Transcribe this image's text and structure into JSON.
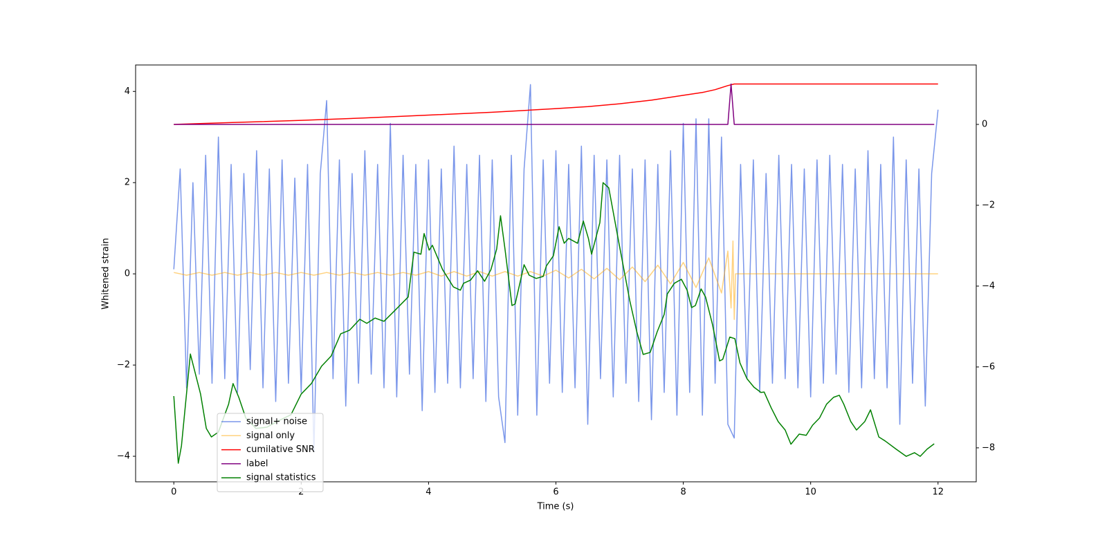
{
  "chart_data": {
    "type": "line",
    "xlabel": "Time (s)",
    "ylabel": "Whitened strain",
    "xlim": [
      -0.6,
      12.6
    ],
    "xticks": [
      0,
      2,
      4,
      6,
      8,
      10,
      12
    ],
    "ylim": [
      -4.56,
      4.58
    ],
    "yticks": [
      {
        "value": -4,
        "label": "−4"
      },
      {
        "value": -2,
        "label": "−2"
      },
      0,
      2,
      4
    ],
    "y2lim": [
      -8.84,
      1.47
    ],
    "y2ticks": [
      {
        "value": -8,
        "label": "−8"
      },
      {
        "value": -6,
        "label": "−6"
      },
      {
        "value": -4,
        "label": "−4"
      },
      {
        "value": -2,
        "label": "−2"
      },
      0
    ],
    "legend": "lower left",
    "series": [
      {
        "name": "signal+ noise",
        "color": "#4169e1",
        "alpha": 0.7,
        "x": [
          0,
          0.1,
          0.2,
          0.3,
          0.4,
          0.5,
          0.6,
          0.7,
          0.8,
          0.9,
          1,
          1.1,
          1.2,
          1.3,
          1.4,
          1.5,
          1.6,
          1.7,
          1.8,
          1.9,
          2,
          2.1,
          2.2,
          2.3,
          2.4,
          2.5,
          2.6,
          2.7,
          2.8,
          2.9,
          3,
          3.1,
          3.2,
          3.3,
          3.4,
          3.5,
          3.6,
          3.7,
          3.8,
          3.9,
          4,
          4.1,
          4.2,
          4.3,
          4.4,
          4.5,
          4.6,
          4.7,
          4.8,
          4.9,
          5,
          5.1,
          5.2,
          5.3,
          5.4,
          5.5,
          5.6,
          5.7,
          5.8,
          5.9,
          6,
          6.1,
          6.2,
          6.3,
          6.4,
          6.5,
          6.6,
          6.7,
          6.8,
          6.9,
          7,
          7.1,
          7.2,
          7.3,
          7.4,
          7.5,
          7.6,
          7.7,
          7.8,
          7.9,
          8,
          8.1,
          8.2,
          8.3,
          8.4,
          8.5,
          8.6,
          8.7,
          8.8,
          8.9,
          9,
          9.1,
          9.2,
          9.3,
          9.4,
          9.5,
          9.6,
          9.7,
          9.8,
          9.9,
          10,
          10.1,
          10.2,
          10.3,
          10.4,
          10.5,
          10.6,
          10.7,
          10.8,
          10.9,
          11,
          11.1,
          11.2,
          11.3,
          11.4,
          11.5,
          11.6,
          11.7,
          11.8,
          11.9,
          12
        ],
        "values": [
          0.1,
          2.3,
          -2.5,
          2.0,
          -2.2,
          2.6,
          -2.4,
          3.0,
          -2.3,
          2.4,
          -2.6,
          2.2,
          -2.1,
          2.7,
          -2.5,
          2.3,
          -2.8,
          2.5,
          -2.4,
          2.1,
          -2.6,
          2.4,
          -3.9,
          2.2,
          3.8,
          -2.3,
          2.5,
          -2.9,
          2.2,
          -2.4,
          2.7,
          -2.2,
          2.4,
          -2.5,
          3.3,
          -2.7,
          2.6,
          -2.2,
          2.4,
          -3.0,
          2.5,
          -2.6,
          2.3,
          -2.4,
          2.8,
          -2.5,
          2.4,
          -2.3,
          2.6,
          -2.8,
          2.5,
          -2.7,
          -3.7,
          2.6,
          -3.1,
          2.3,
          4.15,
          -3.1,
          2.5,
          -2.4,
          2.7,
          -2.6,
          2.4,
          -2.5,
          2.8,
          -3.3,
          2.6,
          -2.3,
          2.5,
          -2.7,
          2.6,
          -2.4,
          2.3,
          -2.8,
          2.5,
          -3.2,
          2.4,
          -2.6,
          2.7,
          -3.1,
          3.3,
          -2.6,
          3.4,
          -3.1,
          3.4,
          -2.4,
          3.0,
          -3.3,
          -3.6,
          2.4,
          -2.3,
          2.5,
          -2.6,
          2.2,
          -2.4,
          2.6,
          -2.3,
          2.4,
          -2.5,
          2.3,
          -2.7,
          2.5,
          -2.4,
          2.6,
          -2.2,
          2.4,
          -2.6,
          2.3,
          -2.5,
          2.7,
          -2.3,
          2.4,
          -2.5,
          3.0,
          -3.3,
          2.5,
          -2.4,
          2.3,
          -2.9,
          2.2,
          3.6
        ]
      },
      {
        "name": "signal only",
        "color": "#ffa500",
        "alpha": 0.5,
        "x": [
          0,
          0.2,
          0.4,
          0.6,
          0.8,
          1,
          1.2,
          1.4,
          1.6,
          1.8,
          2,
          2.2,
          2.4,
          2.6,
          2.8,
          3,
          3.2,
          3.4,
          3.6,
          3.8,
          4,
          4.2,
          4.4,
          4.6,
          4.8,
          5,
          5.2,
          5.4,
          5.6,
          5.8,
          6,
          6.2,
          6.4,
          6.6,
          6.8,
          7,
          7.2,
          7.4,
          7.6,
          7.8,
          8,
          8.2,
          8.4,
          8.6,
          8.7,
          8.75,
          8.78,
          8.8,
          8.82,
          9,
          12
        ],
        "values": [
          0.03,
          -0.03,
          0.03,
          -0.03,
          0.03,
          -0.03,
          0.03,
          -0.03,
          0.03,
          -0.03,
          0.03,
          -0.03,
          0.03,
          -0.03,
          0.03,
          -0.03,
          0.03,
          -0.03,
          0.03,
          -0.03,
          0.05,
          -0.05,
          0.05,
          -0.05,
          0.05,
          -0.05,
          0.05,
          -0.05,
          0.05,
          -0.05,
          0.08,
          -0.09,
          0.1,
          -0.11,
          0.12,
          -0.13,
          0.15,
          -0.17,
          0.19,
          -0.22,
          0.25,
          -0.3,
          0.35,
          -0.42,
          0.5,
          -0.75,
          0.72,
          -1.0,
          0,
          0,
          0
        ]
      },
      {
        "name": "cumilative SNR",
        "color": "#ff0000",
        "alpha": 1,
        "axis": "y2",
        "x": [
          0,
          1,
          2,
          3,
          4,
          5,
          6,
          6.5,
          7,
          7.5,
          8,
          8.3,
          8.5,
          8.7,
          8.8,
          12
        ],
        "values": [
          0,
          0.05,
          0.1,
          0.16,
          0.23,
          0.3,
          0.39,
          0.44,
          0.51,
          0.6,
          0.72,
          0.79,
          0.86,
          0.96,
          1.0,
          1.0
        ]
      },
      {
        "name": "label",
        "color": "#800080",
        "alpha": 1,
        "axis": "y2",
        "x": [
          0,
          8.7,
          8.75,
          8.8,
          11.94
        ],
        "values": [
          0,
          0,
          1,
          0,
          0
        ]
      },
      {
        "name": "signal statistics",
        "color": "#008000",
        "alpha": 1,
        "axis": "y2",
        "x": [
          0,
          0.07,
          0.12,
          0.26,
          0.42,
          0.51,
          0.59,
          0.7,
          0.86,
          0.93,
          1.02,
          1.13,
          1.29,
          1.46,
          1.62,
          1.84,
          2.0,
          2.16,
          2.32,
          2.47,
          2.62,
          2.76,
          2.92,
          3.03,
          3.16,
          3.3,
          3.46,
          3.68,
          3.77,
          3.88,
          3.93,
          4.01,
          4.06,
          4.22,
          4.39,
          4.5,
          4.55,
          4.66,
          4.77,
          4.88,
          4.98,
          5.07,
          5.13,
          5.2,
          5.31,
          5.36,
          5.5,
          5.58,
          5.69,
          5.8,
          5.85,
          5.96,
          6.05,
          6.13,
          6.2,
          6.34,
          6.43,
          6.51,
          6.56,
          6.69,
          6.74,
          6.83,
          6.99,
          7.16,
          7.27,
          7.37,
          7.48,
          7.59,
          7.7,
          7.75,
          7.86,
          7.97,
          8.06,
          8.13,
          8.19,
          8.28,
          8.35,
          8.46,
          8.57,
          8.62,
          8.73,
          8.81,
          8.89,
          9.0,
          9.11,
          9.22,
          9.27,
          9.38,
          9.49,
          9.6,
          9.69,
          9.82,
          9.93,
          10.03,
          10.14,
          10.25,
          10.36,
          10.45,
          10.52,
          10.63,
          10.72,
          10.85,
          10.94,
          11.07,
          11.17,
          11.34,
          11.5,
          11.63,
          11.72,
          11.83,
          11.94
        ],
        "values": [
          -6.72,
          -8.38,
          -7.95,
          -5.68,
          -6.67,
          -7.52,
          -7.73,
          -7.61,
          -6.92,
          -6.41,
          -6.75,
          -7.26,
          -7.52,
          -7.49,
          -7.35,
          -7.18,
          -6.67,
          -6.41,
          -5.98,
          -5.73,
          -5.18,
          -5.09,
          -4.82,
          -4.92,
          -4.79,
          -4.87,
          -4.62,
          -4.27,
          -3.16,
          -3.21,
          -2.7,
          -3.11,
          -2.99,
          -3.59,
          -4.02,
          -4.1,
          -3.93,
          -3.85,
          -3.62,
          -3.88,
          -3.59,
          -3.08,
          -2.26,
          -3.08,
          -4.48,
          -4.44,
          -3.47,
          -3.73,
          -3.81,
          -3.76,
          -3.5,
          -3.25,
          -2.53,
          -2.94,
          -2.82,
          -2.94,
          -2.39,
          -2.82,
          -3.21,
          -2.43,
          -1.44,
          -1.57,
          -2.94,
          -4.36,
          -5.13,
          -5.69,
          -5.64,
          -5.13,
          -4.7,
          -4.19,
          -3.93,
          -3.83,
          -4.1,
          -4.53,
          -4.48,
          -4.07,
          -4.27,
          -4.96,
          -5.85,
          -5.81,
          -5.26,
          -5.3,
          -5.9,
          -6.29,
          -6.5,
          -6.63,
          -6.62,
          -7.01,
          -7.35,
          -7.56,
          -7.91,
          -7.66,
          -7.69,
          -7.44,
          -7.26,
          -6.92,
          -6.75,
          -6.7,
          -6.92,
          -7.35,
          -7.56,
          -7.35,
          -7.06,
          -7.73,
          -7.83,
          -8.03,
          -8.21,
          -8.12,
          -8.21,
          -8.03,
          -7.9
        ]
      }
    ]
  }
}
